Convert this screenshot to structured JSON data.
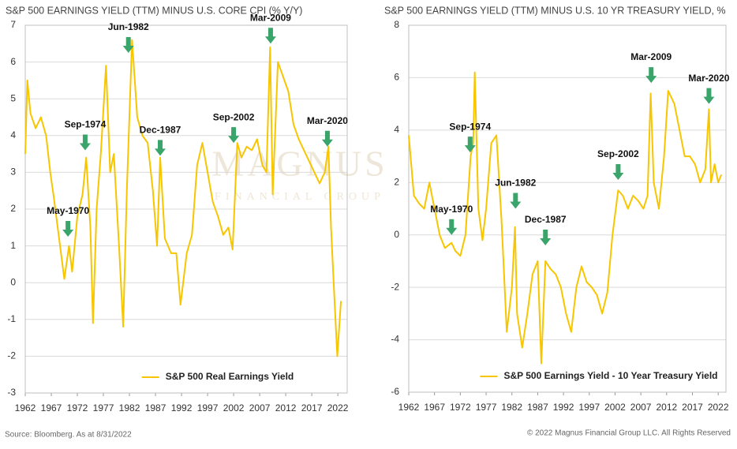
{
  "chart_data": [
    {
      "type": "line",
      "title": "S&P 500 EARNINGS YIELD (TTM) MINUS U.S. CORE CPI (% Y/Y)",
      "x": [
        1962,
        1962.4,
        1963,
        1964,
        1965,
        1966,
        1966.8,
        1967.5,
        1968.5,
        1969.5,
        1970.4,
        1971,
        1972,
        1973,
        1973.7,
        1974.5,
        1975,
        1975.7,
        1976.5,
        1977.5,
        1978.3,
        1979,
        1980,
        1980.8,
        1981.5,
        1982.5,
        1983.5,
        1984.5,
        1985.5,
        1986.5,
        1987.3,
        1987.9,
        1988.8,
        1990,
        1991,
        1991.8,
        1993,
        1994,
        1995,
        1996,
        1997,
        1998,
        1999,
        2000,
        2001,
        2001.8,
        2002.7,
        2003.5,
        2004.5,
        2005.5,
        2006.5,
        2007.5,
        2008.3,
        2009,
        2009.5,
        2010.5,
        2011.5,
        2012.5,
        2013.5,
        2014.5,
        2015.5,
        2016.5,
        2017.5,
        2018.5,
        2019.5,
        2020.2,
        2020.7,
        2021.2,
        2021.9,
        2022.6
      ],
      "series": [
        {
          "name": "S&P 500 Real Earnings Yield",
          "color": "#f7c600",
          "values": [
            3.5,
            5.5,
            4.6,
            4.2,
            4.5,
            4.0,
            3.0,
            2.3,
            1.2,
            0.1,
            1.0,
            0.3,
            1.8,
            2.4,
            3.4,
            1.5,
            -1.1,
            2.0,
            3.5,
            5.9,
            3.0,
            3.5,
            1.0,
            -1.2,
            2.5,
            6.6,
            4.5,
            4.0,
            3.8,
            2.5,
            1.0,
            3.4,
            1.2,
            0.8,
            0.8,
            -0.6,
            0.8,
            1.3,
            3.2,
            3.8,
            3.0,
            2.2,
            1.8,
            1.3,
            1.5,
            0.9,
            3.8,
            3.4,
            3.7,
            3.6,
            3.9,
            3.2,
            3.0,
            6.4,
            2.4,
            6.0,
            5.6,
            5.2,
            4.3,
            3.9,
            3.6,
            3.3,
            3.0,
            2.7,
            3.0,
            3.7,
            1.5,
            0.0,
            -2.0,
            -0.5
          ]
        }
      ],
      "xlim": [
        1962,
        2023.8
      ],
      "ylim": [
        -3,
        7
      ],
      "xticks": [
        1962,
        1967,
        1972,
        1977,
        1982,
        1987,
        1992,
        1997,
        2002,
        2007,
        2012,
        2017,
        2022
      ],
      "yticks": [
        -3,
        -2,
        -1,
        0,
        1,
        2,
        3,
        4,
        5,
        6,
        7
      ],
      "grid": true,
      "legend": "bottom",
      "annotations": [
        {
          "label": "May-1970",
          "x": 1970.2,
          "y": 1.25
        },
        {
          "label": "Sep-1974",
          "x": 1973.5,
          "y": 3.6
        },
        {
          "label": "Jun-1982",
          "x": 1981.8,
          "y": 6.25
        },
        {
          "label": "Dec-1987",
          "x": 1987.9,
          "y": 3.45
        },
        {
          "label": "Sep-2002",
          "x": 2002,
          "y": 3.8
        },
        {
          "label": "Mar-2009",
          "x": 2009.1,
          "y": 6.5
        },
        {
          "label": "Mar-2020",
          "x": 2020,
          "y": 3.7
        }
      ]
    },
    {
      "type": "line",
      "title": "S&P 500 EARNINGS YIELD (TTM) MINUS U.S. 10 YR TREASURY YIELD, %",
      "x": [
        1962,
        1963,
        1964,
        1965,
        1966,
        1967,
        1968,
        1969,
        1970.3,
        1971,
        1972,
        1973,
        1974,
        1974.5,
        1974.8,
        1975.5,
        1976.3,
        1977,
        1978,
        1979,
        1980,
        1981,
        1982,
        1982.6,
        1983,
        1984,
        1985,
        1986,
        1987,
        1987.7,
        1988.5,
        1989.5,
        1990.5,
        1991.5,
        1992.5,
        1993.5,
        1994.5,
        1995.5,
        1996.5,
        1997.5,
        1998.5,
        1999.5,
        2000.5,
        2001.5,
        2002.6,
        2003.5,
        2004.5,
        2005.5,
        2006.5,
        2007.5,
        2008.3,
        2008.9,
        2009.5,
        2010.5,
        2011.5,
        2012.3,
        2013.5,
        2014.5,
        2015.5,
        2016.5,
        2017.5,
        2018.5,
        2019.5,
        2020.2,
        2020.6,
        2021.3,
        2022,
        2022.6
      ],
      "series": [
        {
          "name": "S&P 500 Earnings Yield - 10 Year Treasury Yield",
          "color": "#f7c600",
          "values": [
            3.8,
            1.5,
            1.2,
            1.0,
            2.0,
            1.0,
            0.0,
            -0.5,
            -0.3,
            -0.6,
            -0.8,
            0.0,
            3.0,
            3.5,
            6.2,
            1.0,
            -0.2,
            1.0,
            3.5,
            3.8,
            0.5,
            -3.7,
            -2.0,
            0.3,
            -3.0,
            -4.3,
            -3.0,
            -1.5,
            -1.0,
            -4.9,
            -1.0,
            -1.3,
            -1.5,
            -2.0,
            -3.0,
            -3.7,
            -2.0,
            -1.2,
            -1.8,
            -2.0,
            -2.3,
            -3.0,
            -2.2,
            0.0,
            1.7,
            1.5,
            1.0,
            1.5,
            1.3,
            1.0,
            1.5,
            5.4,
            2.0,
            1.0,
            3.0,
            5.5,
            5.0,
            4.0,
            3.0,
            3.0,
            2.7,
            2.0,
            2.5,
            4.8,
            2.0,
            2.7,
            2.0,
            2.3
          ]
        }
      ],
      "xlim": [
        1962,
        2023.5
      ],
      "ylim": [
        -6,
        8
      ],
      "xticks": [
        1962,
        1967,
        1972,
        1977,
        1982,
        1987,
        1992,
        1997,
        2002,
        2007,
        2012,
        2017,
        2022
      ],
      "yticks": [
        -6,
        -4,
        -2,
        0,
        2,
        4,
        6,
        8
      ],
      "grid": true,
      "legend": "bottom",
      "annotations": [
        {
          "label": "May-1970",
          "x": 1970.3,
          "y": 0.0
        },
        {
          "label": "Sep-1974",
          "x": 1973.9,
          "y": 3.15
        },
        {
          "label": "Jun-1982",
          "x": 1982.7,
          "y": 1.0
        },
        {
          "label": "Dec-1987",
          "x": 1988.5,
          "y": -0.4
        },
        {
          "label": "Sep-2002",
          "x": 2002.6,
          "y": 2.1
        },
        {
          "label": "Mar-2009",
          "x": 2009,
          "y": 5.8
        },
        {
          "label": "Mar-2020",
          "x": 2020.2,
          "y": 5.0
        }
      ]
    }
  ],
  "footer": {
    "source": "Source: Bloomberg. As at 8/31/2022",
    "copyright": "© 2022 Magnus Financial Group LLC. All Rights Reserved"
  },
  "watermark": {
    "name": "MAGNUS",
    "tagline": "FINANCIAL GROUP"
  }
}
